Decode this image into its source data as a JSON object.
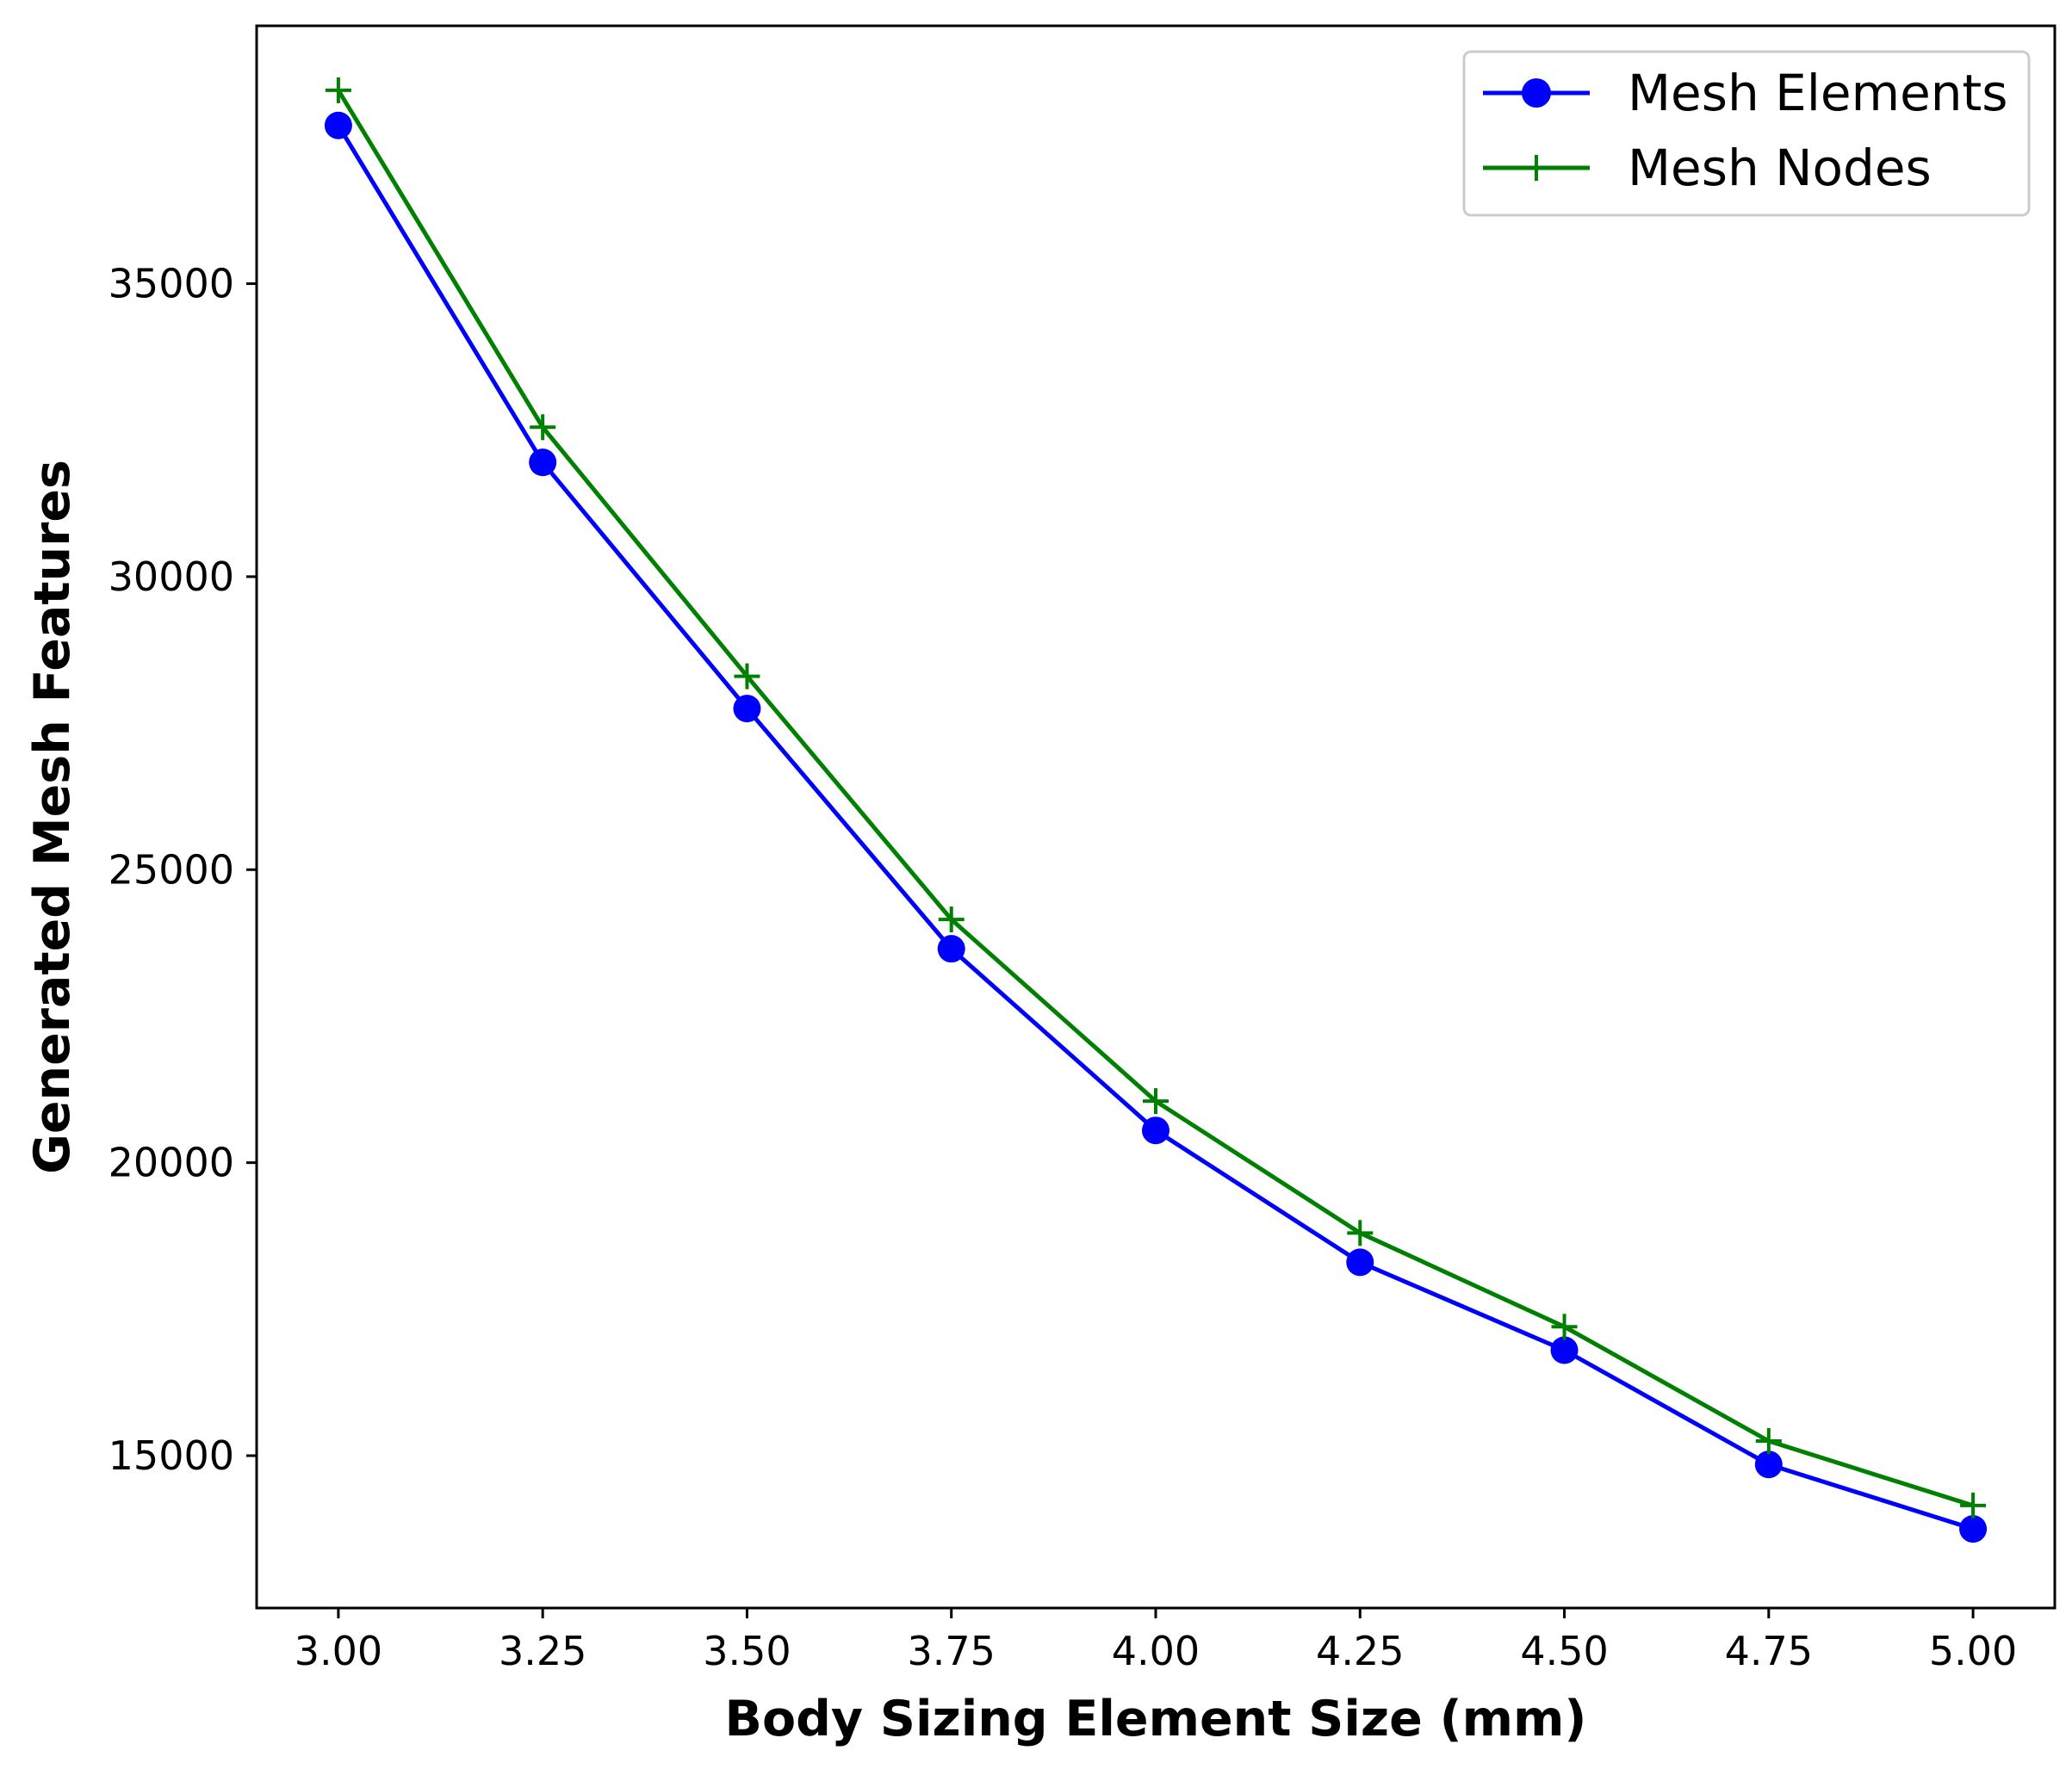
{
  "chart_data": {
    "type": "line",
    "title": "",
    "xlabel": "Body Sizing Element Size (mm)",
    "ylabel": "Generated Mesh Features",
    "x": [
      3.0,
      3.25,
      3.5,
      3.75,
      4.0,
      4.25,
      4.5,
      4.75,
      5.0
    ],
    "xlim": [
      2.9,
      5.1
    ],
    "ylim": [
      12400,
      39400
    ],
    "xticks": [
      "3.00",
      "3.25",
      "3.50",
      "3.75",
      "4.00",
      "4.25",
      "4.50",
      "4.75",
      "5.00"
    ],
    "yticks": [
      "15000",
      "20000",
      "25000",
      "30000",
      "35000"
    ],
    "grid": false,
    "legend_position": "top-right",
    "series": [
      {
        "name": "Mesh Elements",
        "color": "#0000ff",
        "marker": "circle",
        "values": [
          37700,
          31950,
          27750,
          23650,
          20550,
          18300,
          16800,
          14850,
          13750
        ]
      },
      {
        "name": "Mesh Nodes",
        "color": "#008000",
        "marker": "plus",
        "values": [
          38300,
          32550,
          28300,
          24150,
          21050,
          18800,
          17200,
          15250,
          14150
        ]
      }
    ]
  }
}
